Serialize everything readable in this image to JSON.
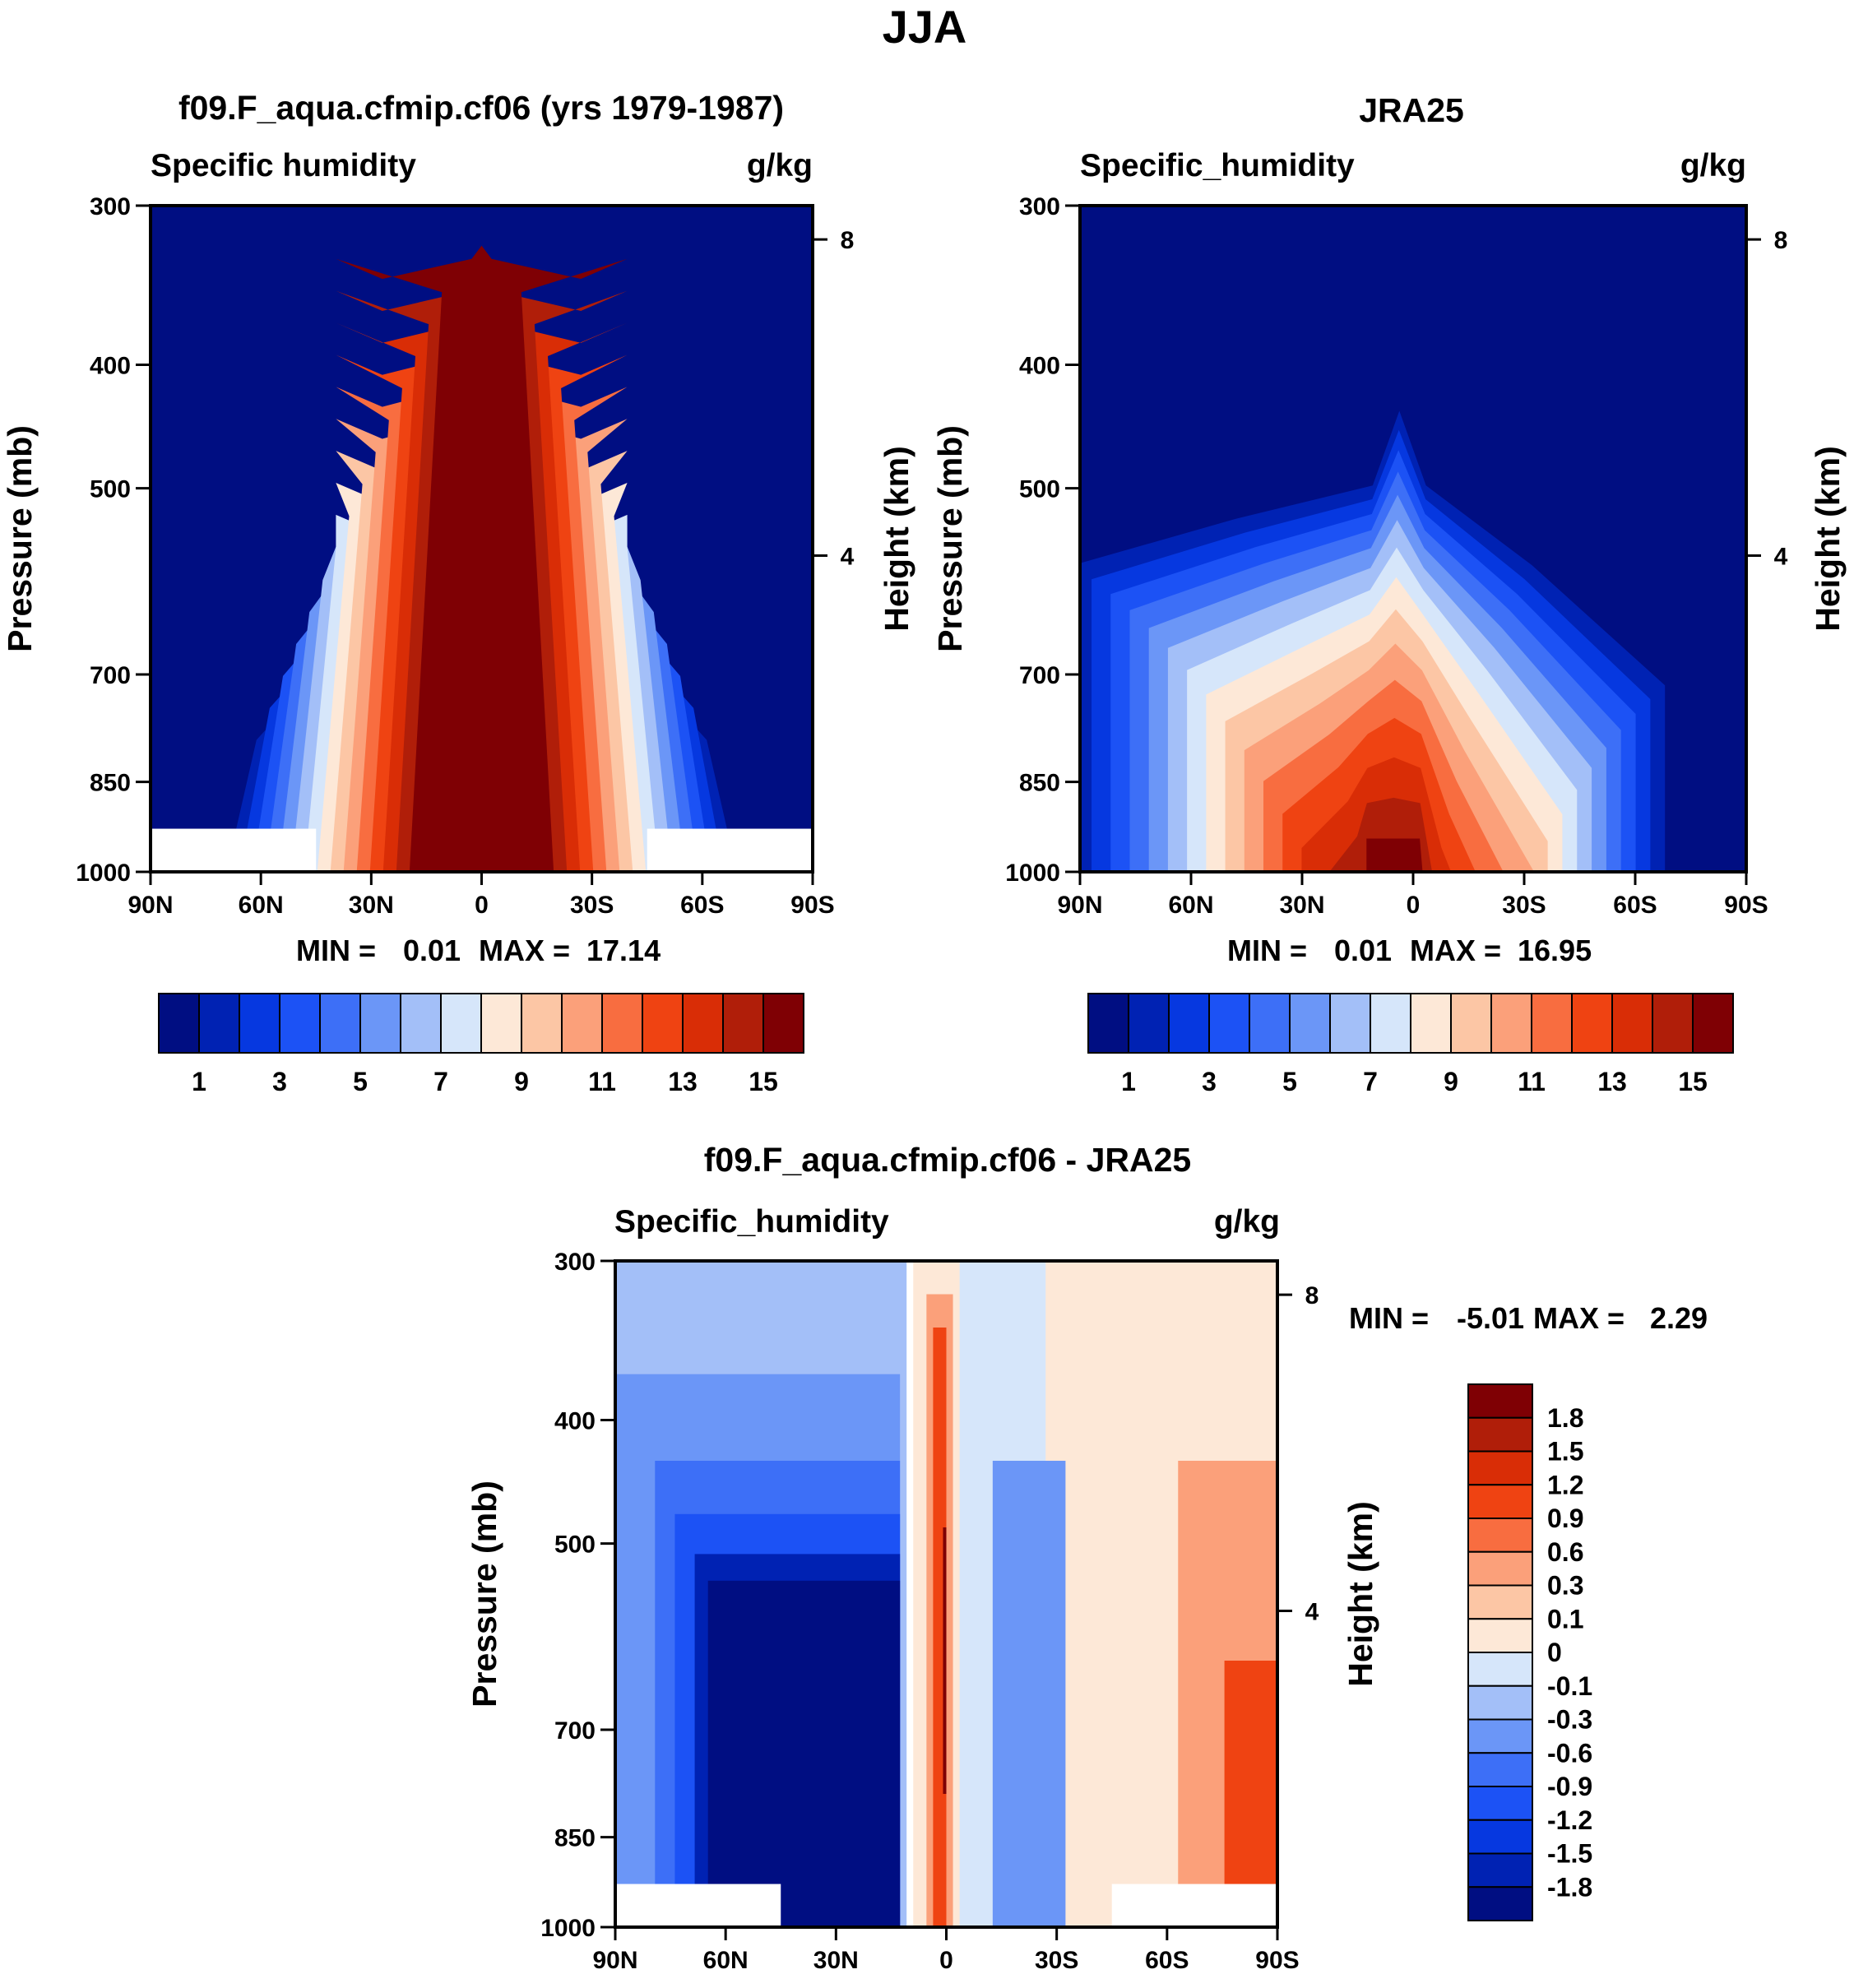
{
  "figure": {
    "title": "JJA"
  },
  "chart_data": [
    {
      "type": "contour",
      "title": "f09.F_aqua.cfmip.cf06 (yrs 1979-1987)",
      "left_label": "Specific humidity",
      "right_label": "g/kg",
      "ylabel": "Pressure (mb)",
      "ylabel_right": "Height (km)",
      "x_ticks": [
        "90N",
        "60N",
        "30N",
        "0",
        "30S",
        "60S",
        "90S"
      ],
      "xlim": [
        90,
        -90
      ],
      "y_ticks": [
        300,
        400,
        500,
        700,
        850,
        1000
      ],
      "ylim": [
        1000,
        300
      ],
      "y_right_ticks": [
        8,
        4
      ],
      "stats": {
        "min_label": "MIN =",
        "min": "0.01",
        "max_label": "MAX =",
        "max": "17.14"
      },
      "colorbar": {
        "orientation": "horizontal",
        "colors": [
          "#000e82",
          "#0022b3",
          "#0638e0",
          "#1c52f5",
          "#3d6ff7",
          "#6b96f7",
          "#a3bff8",
          "#d6e6fa",
          "#fde8d7",
          "#fcc6a5",
          "#fba07a",
          "#f86d40",
          "#ef4312",
          "#d92d06",
          "#b01e09",
          "#7f0004"
        ],
        "labels": [
          "1",
          "3",
          "5",
          "7",
          "9",
          "11",
          "13",
          "15"
        ],
        "levels": [
          0.5,
          1,
          2,
          3,
          4,
          5,
          6,
          7,
          8,
          9,
          10,
          11,
          12,
          13,
          14,
          15
        ]
      },
      "masked_regions": [
        [
          90,
          45
        ],
        [
          -45,
          -90
        ]
      ]
    },
    {
      "type": "contour",
      "title": "JRA25",
      "left_label": "Specific_humidity",
      "right_label": "g/kg",
      "ylabel": "Pressure (mb)",
      "ylabel_right": "Height (km)",
      "x_ticks": [
        "90N",
        "60N",
        "30N",
        "0",
        "30S",
        "60S",
        "90S"
      ],
      "xlim": [
        90,
        -90
      ],
      "y_ticks": [
        300,
        400,
        500,
        700,
        850,
        1000
      ],
      "ylim": [
        1000,
        300
      ],
      "y_right_ticks": [
        8,
        4
      ],
      "stats": {
        "min_label": "MIN =",
        "min": "0.01",
        "max_label": "MAX =",
        "max": "16.95"
      },
      "colorbar": {
        "orientation": "horizontal",
        "colors": [
          "#000e82",
          "#0022b3",
          "#0638e0",
          "#1c52f5",
          "#3d6ff7",
          "#6b96f7",
          "#a3bff8",
          "#d6e6fa",
          "#fde8d7",
          "#fcc6a5",
          "#fba07a",
          "#f86d40",
          "#ef4312",
          "#d92d06",
          "#b01e09",
          "#7f0004"
        ],
        "labels": [
          "1",
          "3",
          "5",
          "7",
          "9",
          "11",
          "13",
          "15"
        ],
        "levels": [
          0.5,
          1,
          2,
          3,
          4,
          5,
          6,
          7,
          8,
          9,
          10,
          11,
          12,
          13,
          14,
          15
        ]
      },
      "masked_regions": []
    },
    {
      "type": "contour",
      "title": "f09.F_aqua.cfmip.cf06 - JRA25",
      "left_label": "Specific_humidity",
      "right_label": "g/kg",
      "ylabel": "Pressure (mb)",
      "ylabel_right": "Height (km)",
      "x_ticks": [
        "90N",
        "60N",
        "30N",
        "0",
        "30S",
        "60S",
        "90S"
      ],
      "xlim": [
        90,
        -90
      ],
      "y_ticks": [
        300,
        400,
        500,
        700,
        850,
        1000
      ],
      "ylim": [
        1000,
        300
      ],
      "y_right_ticks": [
        8,
        4
      ],
      "stats": {
        "min_label": "MIN =",
        "min": "-5.01",
        "max_label": "MAX =",
        "max": "2.29"
      },
      "colorbar": {
        "orientation": "vertical",
        "colors": [
          "#7f0004",
          "#b01e09",
          "#d92d06",
          "#ef4312",
          "#f86d40",
          "#fba07a",
          "#fcc6a5",
          "#fde8d7",
          "#d6e6fa",
          "#a3bff8",
          "#6b96f7",
          "#3d6ff7",
          "#1c52f5",
          "#0638e0",
          "#0022b3",
          "#000e82"
        ],
        "labels": [
          "1.8",
          "1.5",
          "1.2",
          "0.9",
          "0.6",
          "0.3",
          "0.1",
          "0",
          "-0.1",
          "-0.3",
          "-0.6",
          "-0.9",
          "-1.2",
          "-1.5",
          "-1.8"
        ]
      },
      "masked_regions": [
        [
          90,
          45
        ],
        [
          -45,
          -90
        ]
      ]
    }
  ]
}
